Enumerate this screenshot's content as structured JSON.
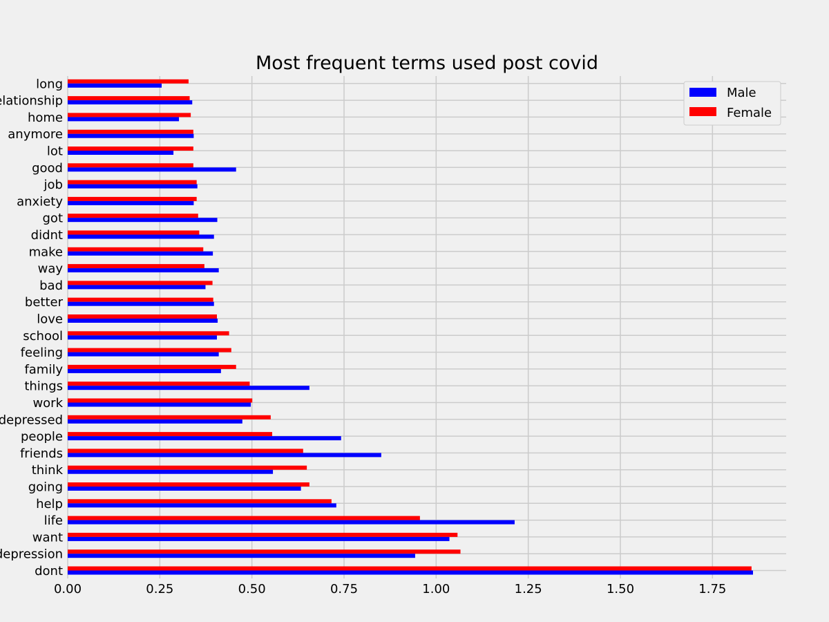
{
  "chart_data": {
    "type": "bar",
    "orientation": "horizontal",
    "title": "Most frequent terms used post covid",
    "xlabel": "",
    "ylabel": "",
    "xlim": [
      0,
      1.95
    ],
    "xticks": [
      "0.00",
      "0.25",
      "0.50",
      "0.75",
      "1.00",
      "1.25",
      "1.50",
      "1.75"
    ],
    "grid": true,
    "legend_position": "top-right",
    "categories": [
      "dont",
      "depression",
      "want",
      "life",
      "help",
      "going",
      "think",
      "friends",
      "people",
      "depressed",
      "work",
      "things",
      "family",
      "feeling",
      "school",
      "love",
      "better",
      "bad",
      "way",
      "make",
      "didnt",
      "got",
      "anxiety",
      "job",
      "good",
      "lot",
      "anymore",
      "home",
      "relationship",
      "long"
    ],
    "series": [
      {
        "name": "Male",
        "color": "#0000ff",
        "values": [
          1.86,
          0.943,
          1.036,
          1.213,
          0.729,
          0.633,
          0.557,
          0.851,
          0.742,
          0.474,
          0.497,
          0.656,
          0.416,
          0.41,
          0.405,
          0.407,
          0.397,
          0.374,
          0.41,
          0.394,
          0.397,
          0.406,
          0.342,
          0.352,
          0.457,
          0.287,
          0.342,
          0.302,
          0.338,
          0.255
        ]
      },
      {
        "name": "Female",
        "color": "#ff0000",
        "values": [
          1.856,
          1.066,
          1.058,
          0.956,
          0.716,
          0.656,
          0.649,
          0.639,
          0.555,
          0.551,
          0.501,
          0.494,
          0.457,
          0.444,
          0.438,
          0.405,
          0.395,
          0.393,
          0.371,
          0.368,
          0.357,
          0.354,
          0.35,
          0.35,
          0.341,
          0.341,
          0.341,
          0.334,
          0.331,
          0.328
        ]
      }
    ]
  }
}
